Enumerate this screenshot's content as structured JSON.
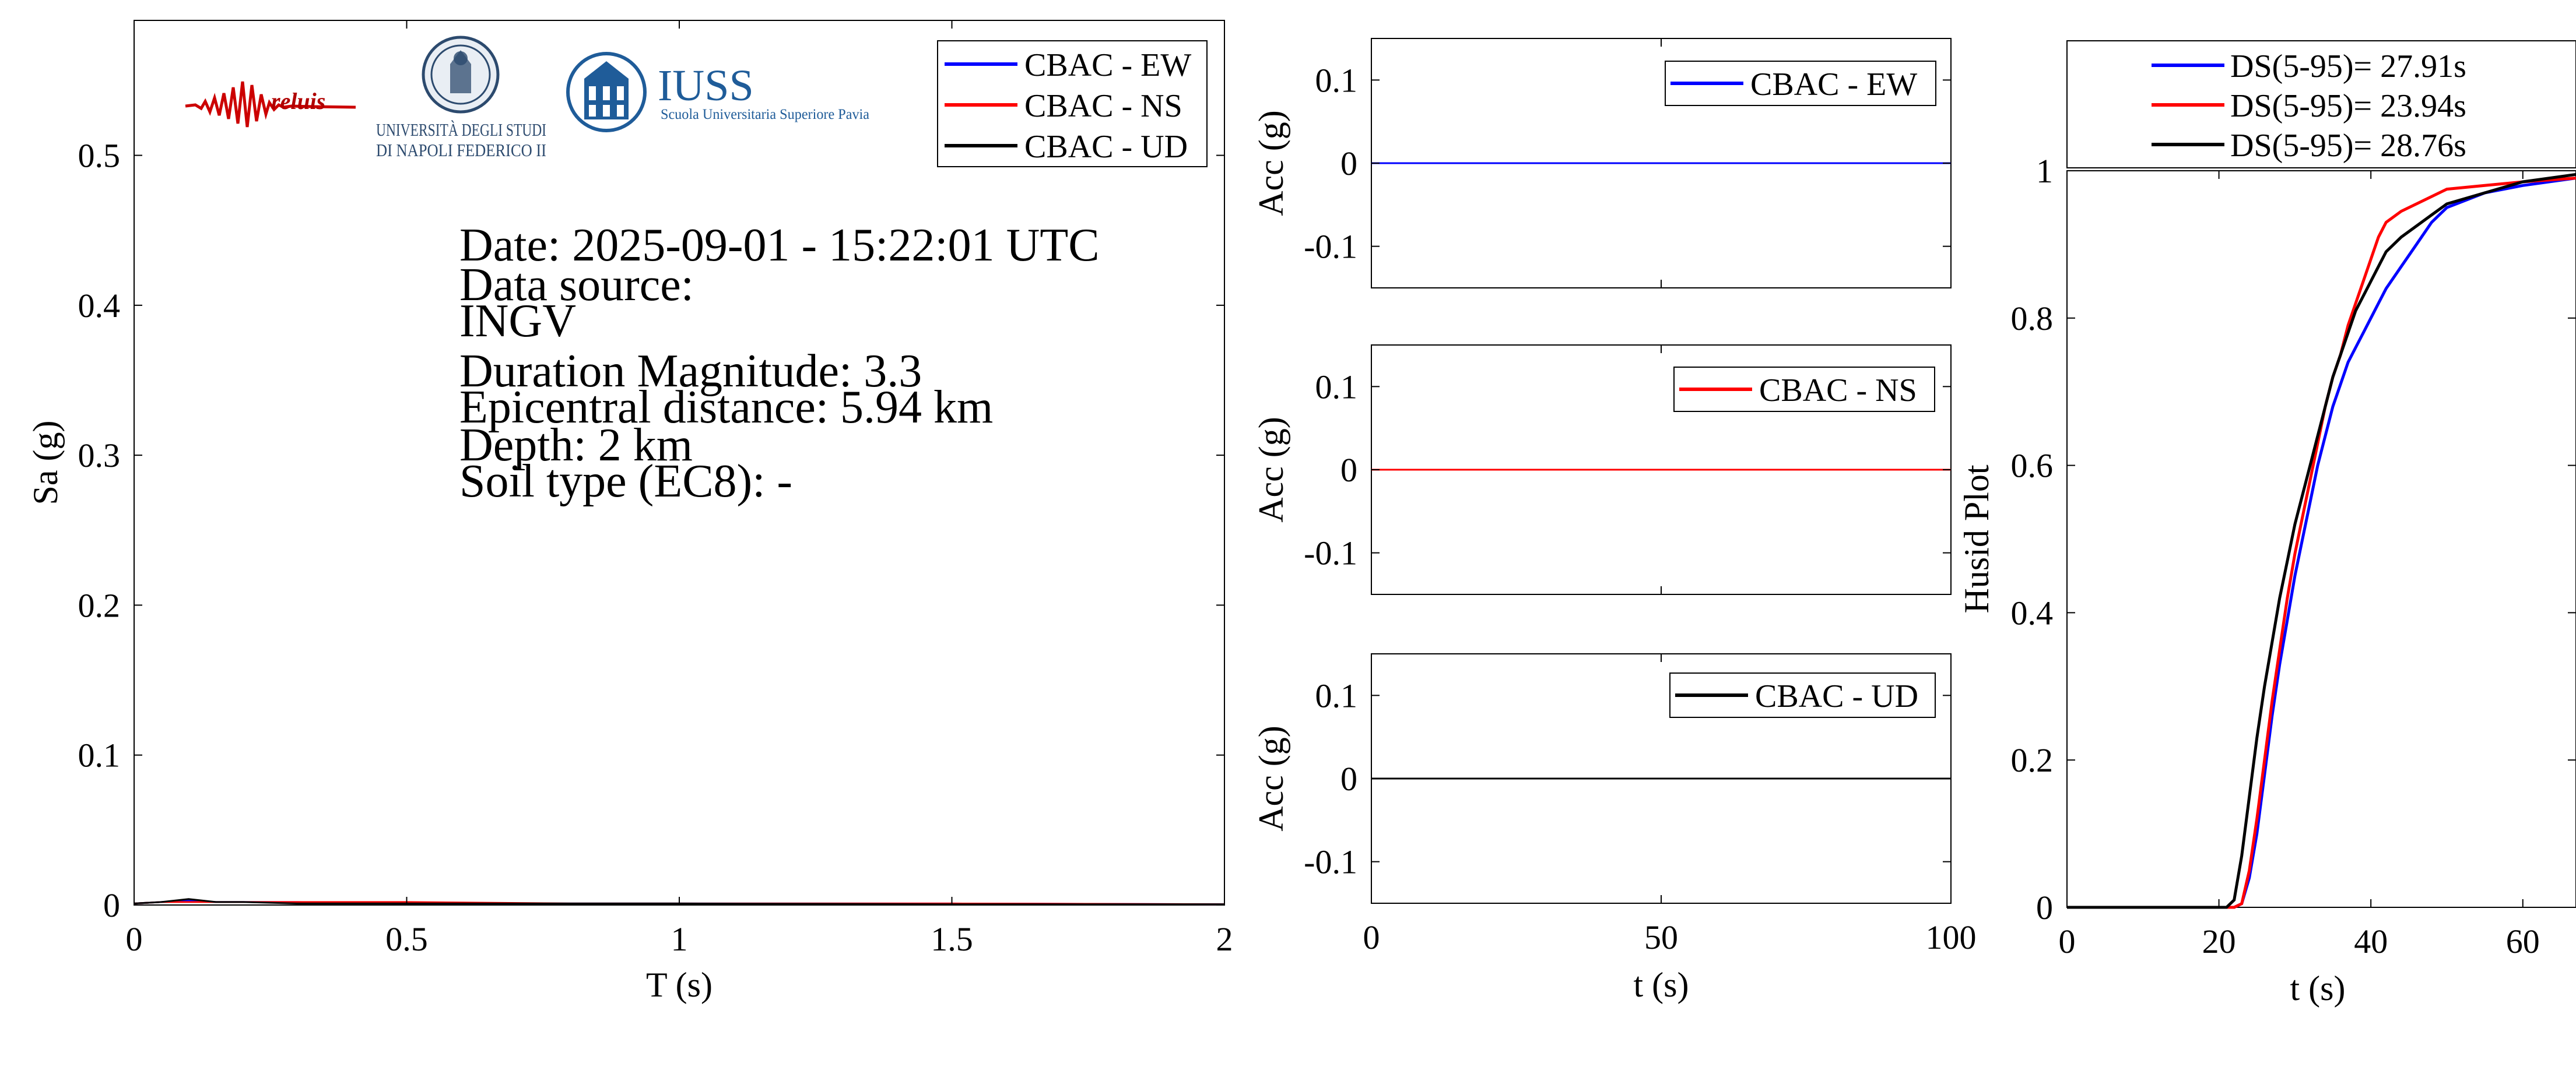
{
  "logos": {
    "reluis": "reluis",
    "unina_line1": "UNIVERSITÀ DEGLI STUDI",
    "unina_line2": "DI NAPOLI FEDERICO II",
    "iuss_name": "IUSS",
    "iuss_sub": "Scuola Universitaria Superiore Pavia"
  },
  "info": {
    "date": "Date: 2025-09-01 - 15:22:01 UTC",
    "source_label": "Data source:",
    "source_value": "INGV",
    "magnitude": "Duration Magnitude: 3.3",
    "distance": "Epicentral distance: 5.94 km",
    "depth": "Depth: 2 km",
    "soil": "Soil type (EC8): -"
  },
  "colors": {
    "ew": "#0000ff",
    "ns": "#ff0000",
    "ud": "#000000",
    "axis": "#000000"
  },
  "chart_data": [
    {
      "id": "spectrum",
      "type": "line",
      "xlabel": "T (s)",
      "ylabel": "Sa (g)",
      "xlim": [
        0,
        2
      ],
      "ylim": [
        0,
        0.59
      ],
      "xticks": [
        0,
        0.5,
        1,
        1.5,
        2
      ],
      "xtick_labels": [
        "0",
        "0.5",
        "1",
        "1.5",
        "2"
      ],
      "yticks": [
        0,
        0.1,
        0.2,
        0.3,
        0.4,
        0.5
      ],
      "ytick_labels": [
        "0",
        "0.1",
        "0.2",
        "0.3",
        "0.4",
        "0.5"
      ],
      "legend_position": "top-right",
      "series": [
        {
          "name": "CBAC - EW",
          "color": "#0000ff",
          "x": [
            0,
            0.05,
            0.1,
            0.15,
            0.2,
            0.3,
            0.5,
            0.8,
            1,
            1.5,
            2
          ],
          "y": [
            0.001,
            0.002,
            0.003,
            0.002,
            0.002,
            0.002,
            0.001,
            0.001,
            0.001,
            0.001,
            0.0005
          ]
        },
        {
          "name": "CBAC - NS",
          "color": "#ff0000",
          "x": [
            0,
            0.05,
            0.1,
            0.15,
            0.2,
            0.3,
            0.5,
            0.8,
            1,
            1.5,
            2
          ],
          "y": [
            0.001,
            0.002,
            0.002,
            0.002,
            0.002,
            0.002,
            0.002,
            0.001,
            0.001,
            0.001,
            0.0005
          ]
        },
        {
          "name": "CBAC - UD",
          "color": "#000000",
          "x": [
            0,
            0.05,
            0.1,
            0.15,
            0.2,
            0.3,
            0.5,
            0.8,
            1,
            1.5,
            2
          ],
          "y": [
            0.001,
            0.002,
            0.004,
            0.002,
            0.002,
            0.001,
            0.001,
            0.001,
            0.001,
            0.0005,
            0.0005
          ]
        }
      ]
    },
    {
      "id": "acc_ew",
      "type": "line",
      "xlabel": "",
      "ylabel": "Acc (g)",
      "xlim": [
        0,
        100
      ],
      "ylim": [
        -0.15,
        0.15
      ],
      "xticks": [
        0,
        50,
        100
      ],
      "xtick_labels": [
        "",
        "",
        ""
      ],
      "yticks": [
        -0.1,
        0,
        0.1
      ],
      "ytick_labels": [
        "-0.1",
        "0",
        "0.1"
      ],
      "legend_position": "top-right",
      "series": [
        {
          "name": "CBAC - EW",
          "color": "#0000ff",
          "x": [
            0,
            100
          ],
          "y": [
            0,
            0
          ]
        }
      ]
    },
    {
      "id": "acc_ns",
      "type": "line",
      "xlabel": "",
      "ylabel": "Acc (g)",
      "xlim": [
        0,
        100
      ],
      "ylim": [
        -0.15,
        0.15
      ],
      "xticks": [
        0,
        50,
        100
      ],
      "xtick_labels": [
        "",
        "",
        ""
      ],
      "yticks": [
        -0.1,
        0,
        0.1
      ],
      "ytick_labels": [
        "-0.1",
        "0",
        "0.1"
      ],
      "legend_position": "top-right",
      "series": [
        {
          "name": "CBAC - NS",
          "color": "#ff0000",
          "x": [
            0,
            100
          ],
          "y": [
            0,
            0
          ]
        }
      ]
    },
    {
      "id": "acc_ud",
      "type": "line",
      "xlabel": "t (s)",
      "ylabel": "Acc (g)",
      "xlim": [
        0,
        100
      ],
      "ylim": [
        -0.15,
        0.15
      ],
      "xticks": [
        0,
        50,
        100
      ],
      "xtick_labels": [
        "0",
        "50",
        "100"
      ],
      "yticks": [
        -0.1,
        0,
        0.1
      ],
      "ytick_labels": [
        "-0.1",
        "0",
        "0.1"
      ],
      "legend_position": "top-right",
      "series": [
        {
          "name": "CBAC - UD",
          "color": "#000000",
          "x": [
            0,
            100
          ],
          "y": [
            0,
            0
          ]
        }
      ]
    },
    {
      "id": "husid",
      "type": "line",
      "xlabel": "t (s)",
      "ylabel": "Husid Plot",
      "xlim": [
        0,
        67
      ],
      "ylim": [
        0,
        1
      ],
      "xticks": [
        0,
        20,
        40,
        60
      ],
      "xtick_labels": [
        "0",
        "20",
        "40",
        "60"
      ],
      "yticks": [
        0,
        0.2,
        0.4,
        0.6,
        0.8,
        1
      ],
      "ytick_labels": [
        "0",
        "0.2",
        "0.4",
        "0.6",
        "0.8",
        "1"
      ],
      "legend_position": "top-outside",
      "series": [
        {
          "name": "DS(5-95)= 27.91s",
          "color": "#0000ff",
          "x": [
            0,
            22,
            23,
            24,
            25,
            26,
            27,
            28,
            29,
            30,
            31,
            32,
            33,
            34,
            35,
            36,
            37,
            38,
            39,
            40,
            41,
            42,
            44,
            46,
            48,
            50,
            55,
            60,
            67
          ],
          "y": [
            0,
            0,
            0.005,
            0.04,
            0.1,
            0.18,
            0.26,
            0.33,
            0.39,
            0.45,
            0.5,
            0.55,
            0.6,
            0.64,
            0.68,
            0.71,
            0.74,
            0.76,
            0.78,
            0.8,
            0.82,
            0.84,
            0.87,
            0.9,
            0.93,
            0.95,
            0.97,
            0.98,
            0.99
          ]
        },
        {
          "name": "DS(5-95)= 23.94s",
          "color": "#ff0000",
          "x": [
            0,
            22,
            23,
            24,
            25,
            26,
            27,
            28,
            29,
            30,
            31,
            32,
            33,
            34,
            35,
            36,
            37,
            38,
            39,
            40,
            41,
            42,
            44,
            46,
            48,
            50,
            55,
            60,
            67
          ],
          "y": [
            0,
            0,
            0.005,
            0.05,
            0.12,
            0.2,
            0.28,
            0.35,
            0.42,
            0.48,
            0.53,
            0.58,
            0.63,
            0.68,
            0.72,
            0.75,
            0.79,
            0.82,
            0.85,
            0.88,
            0.91,
            0.93,
            0.945,
            0.955,
            0.965,
            0.975,
            0.98,
            0.985,
            0.99
          ]
        },
        {
          "name": "DS(5-95)= 28.76s",
          "color": "#000000",
          "x": [
            0,
            21,
            22,
            23,
            24,
            25,
            26,
            27,
            28,
            29,
            30,
            31,
            32,
            33,
            34,
            35,
            36,
            37,
            38,
            39,
            40,
            41,
            42,
            44,
            46,
            48,
            50,
            55,
            60,
            67
          ],
          "y": [
            0,
            0,
            0.01,
            0.07,
            0.15,
            0.23,
            0.3,
            0.36,
            0.42,
            0.47,
            0.52,
            0.56,
            0.6,
            0.64,
            0.68,
            0.72,
            0.75,
            0.78,
            0.81,
            0.83,
            0.85,
            0.87,
            0.89,
            0.91,
            0.925,
            0.94,
            0.955,
            0.97,
            0.985,
            0.995
          ]
        }
      ]
    }
  ]
}
